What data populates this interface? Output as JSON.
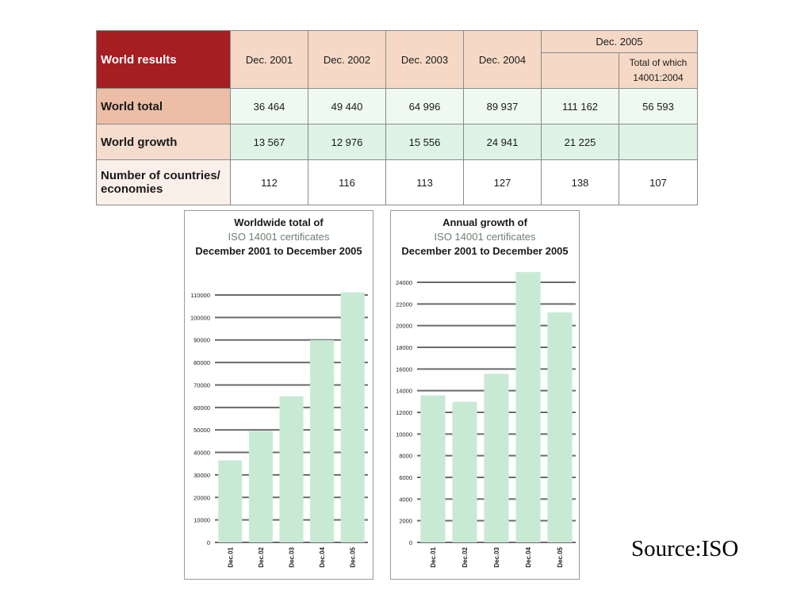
{
  "table": {
    "corner_label": "World results",
    "year_headers": [
      "Dec. 2001",
      "Dec. 2002",
      "Dec. 2003",
      "Dec. 2004"
    ],
    "dec2005_header": "Dec. 2005",
    "dec2005_sub_total": "",
    "dec2005_sub_which": "Total of which 14001:2004",
    "rows": [
      {
        "label": "World total",
        "cells": [
          "36 464",
          "49 440",
          "64 996",
          "89 937",
          "111 162",
          "56 593"
        ]
      },
      {
        "label": "World growth",
        "cells": [
          "13 567",
          "12 976",
          "15 556",
          "24 941",
          "21 225",
          ""
        ]
      },
      {
        "label": "Number of countries/ economies",
        "cells": [
          "112",
          "116",
          "113",
          "127",
          "138",
          "107"
        ]
      }
    ]
  },
  "colors": {
    "bar_fill": "#c8ead4",
    "grid_line": "#6a6a6a",
    "corner_bg": "#a51e22"
  },
  "chart_data": [
    {
      "type": "bar",
      "title_line1": "Worldwide total of",
      "title_line2": "ISO 14001 certificates",
      "title_line3": "December 2001 to December 2005",
      "categories": [
        "Dec.01",
        "Dec.02",
        "Dec.03",
        "Dec.04",
        "Dec.05"
      ],
      "values": [
        36464,
        49440,
        64996,
        89937,
        111162
      ],
      "yticks": [
        0,
        10000,
        20000,
        30000,
        40000,
        50000,
        60000,
        70000,
        80000,
        90000,
        100000,
        110000
      ],
      "ylim": [
        0,
        110000
      ],
      "grid": true
    },
    {
      "type": "bar",
      "title_line1": "Annual growth of",
      "title_line2": "ISO 14001 certificates",
      "title_line3": "December 2001 to December 2005",
      "categories": [
        "Dec.01",
        "Dec.02",
        "Dec.03",
        "Dec.04",
        "Dec.05"
      ],
      "values": [
        13567,
        12976,
        15556,
        24941,
        21225
      ],
      "yticks": [
        0,
        2000,
        4000,
        6000,
        8000,
        10000,
        12000,
        14000,
        16000,
        18000,
        20000,
        22000,
        24000
      ],
      "ylim": [
        0,
        24000
      ],
      "grid": true
    }
  ],
  "source": "Source:ISO"
}
